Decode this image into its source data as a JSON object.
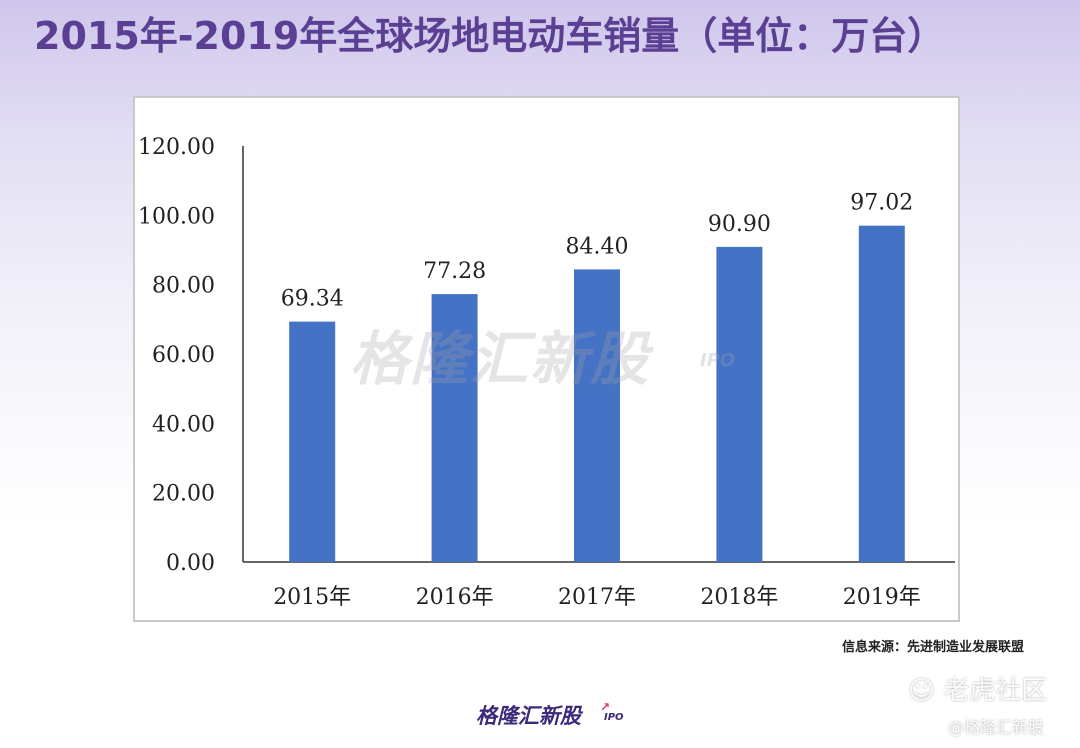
{
  "title": "2015年-2019年全球场地电动车销量（单位：万台）",
  "source_note": "信息来源：先进制造业发展联盟",
  "watermark_center": "格隆汇新股",
  "watermark_center_ipo": "IPO",
  "bottom_logo": "格隆汇新股",
  "bottom_logo_ipo": "IPO",
  "watermark_tiger": "老虎社区",
  "watermark_gelonghui": "@格隆汇新股",
  "colors": {
    "bar": "#4472c4",
    "title": "#5b3f93",
    "axis": "#333333"
  },
  "chart_data": {
    "type": "bar",
    "title": "",
    "xlabel": "",
    "ylabel": "",
    "categories": [
      "2015年",
      "2016年",
      "2017年",
      "2018年",
      "2019年"
    ],
    "values": [
      69.34,
      77.28,
      84.4,
      90.9,
      97.02
    ],
    "data_labels": [
      "69.34",
      "77.28",
      "84.40",
      "90.90",
      "97.02"
    ],
    "ylim": [
      0,
      120
    ],
    "yticks": [
      "0.00",
      "20.00",
      "40.00",
      "60.00",
      "80.00",
      "100.00",
      "120.00"
    ],
    "grid": false,
    "legend": "none"
  }
}
